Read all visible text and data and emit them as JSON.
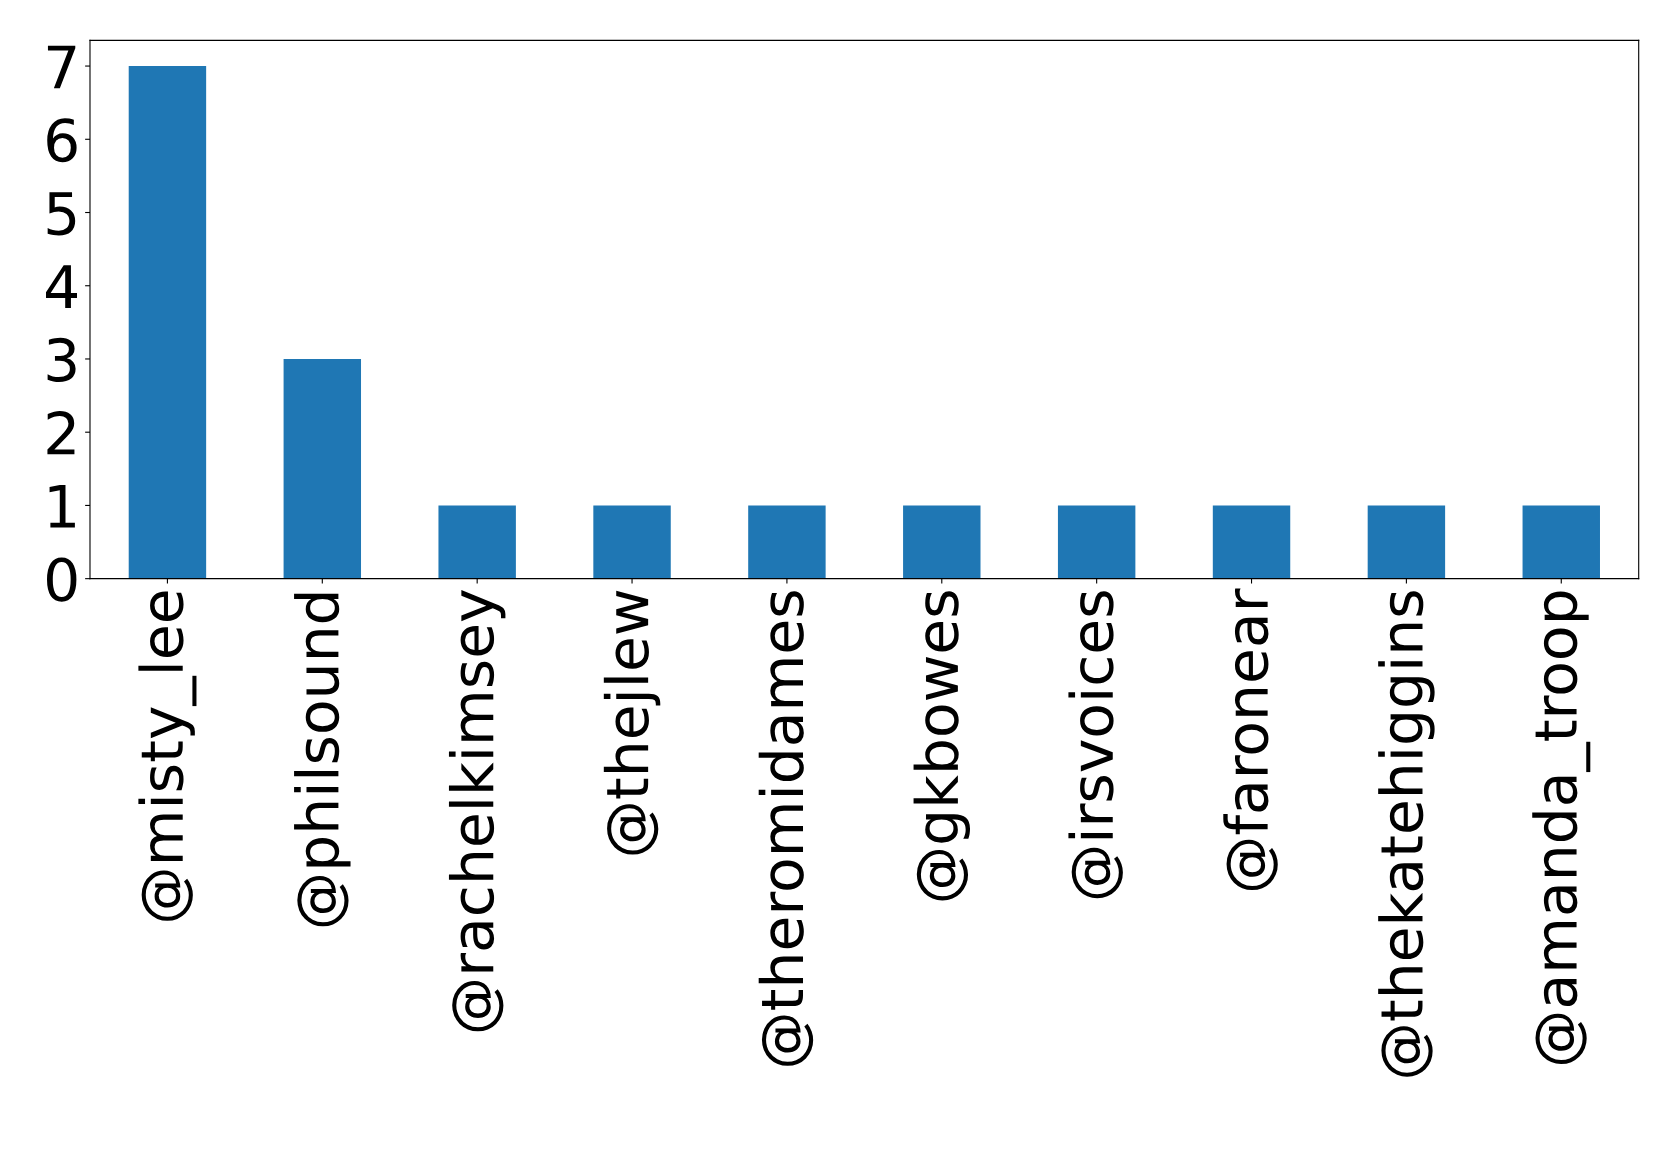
{
  "chart_data": {
    "type": "bar",
    "categories": [
      "@misty_lee",
      "@philsound",
      "@rachelkimsey",
      "@thejlew",
      "@theromidames",
      "@gkbowes",
      "@irsvoices",
      "@faronear",
      "@thekatehiggins",
      "@amanda_troop"
    ],
    "values": [
      7,
      3,
      1,
      1,
      1,
      1,
      1,
      1,
      1,
      1
    ],
    "color": "#1f77b4",
    "ylim": [
      0,
      7.35
    ],
    "yticks": [
      0,
      1,
      2,
      3,
      4,
      5,
      6,
      7
    ],
    "grid": false,
    "legend": false
  }
}
